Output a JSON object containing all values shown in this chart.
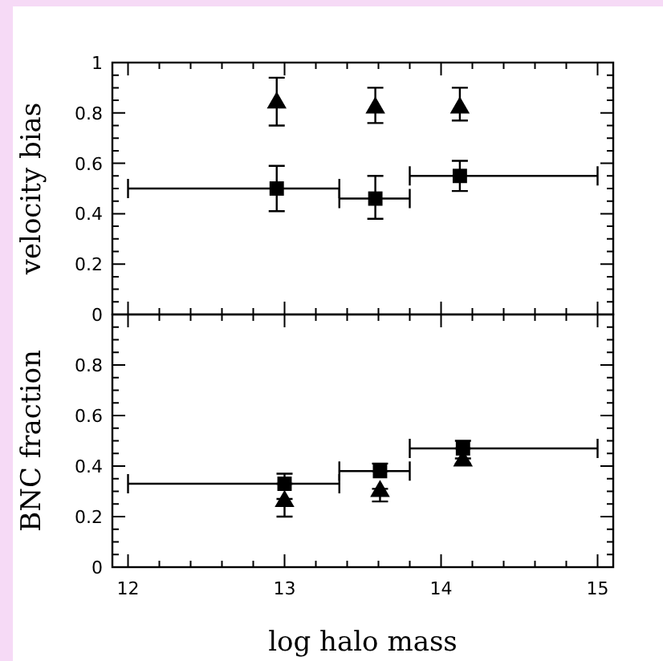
{
  "chart_data": [
    {
      "type": "scatter",
      "ylabel": "velocity bias",
      "xlim": [
        11.9,
        15.1
      ],
      "ylim": [
        0,
        1
      ],
      "tick_labels": "y",
      "xticks": [
        12,
        {
          "value": 12.2,
          "label": null
        },
        {
          "value": 12.4,
          "label": null
        },
        {
          "value": 12.6,
          "label": null
        },
        {
          "value": 12.8,
          "label": null
        },
        13,
        {
          "value": 13.2,
          "label": null
        },
        {
          "value": 13.4,
          "label": null
        },
        {
          "value": 13.6,
          "label": null
        },
        {
          "value": 13.8,
          "label": null
        },
        14,
        {
          "value": 14.2,
          "label": null
        },
        {
          "value": 14.4,
          "label": null
        },
        {
          "value": 14.6,
          "label": null
        },
        {
          "value": 14.8,
          "label": null
        },
        15
      ],
      "yticks": [
        0,
        {
          "value": 0.05,
          "label": null
        },
        {
          "value": 0.1,
          "label": null
        },
        {
          "value": 0.15,
          "label": null
        },
        0.2,
        {
          "value": 0.25,
          "label": null
        },
        {
          "value": 0.3,
          "label": null
        },
        {
          "value": 0.35,
          "label": null
        },
        0.4,
        {
          "value": 0.45,
          "label": null
        },
        {
          "value": 0.5,
          "label": null
        },
        {
          "value": 0.55,
          "label": null
        },
        0.6,
        {
          "value": 0.65,
          "label": null
        },
        {
          "value": 0.7,
          "label": null
        },
        {
          "value": 0.75,
          "label": null
        },
        0.8,
        {
          "value": 0.85,
          "label": null
        },
        {
          "value": 0.9,
          "label": null
        },
        {
          "value": 0.95,
          "label": null
        },
        1
      ],
      "series": [
        {
          "marker": "square",
          "color": "#000000",
          "x": [
            12.95,
            13.58,
            14.12
          ],
          "values": [
            0.5,
            0.46,
            0.55
          ],
          "errors": [
            [
              0.41,
              0.59
            ],
            [
              0.38,
              0.55
            ],
            [
              0.49,
              0.61
            ]
          ],
          "xerrors": [
            [
              12,
              13.35
            ],
            [
              13.35,
              13.8
            ],
            [
              13.8,
              15
            ]
          ]
        },
        {
          "marker": "triangle",
          "color": "#000000",
          "x": [
            12.95,
            13.58,
            14.12
          ],
          "values": [
            0.85,
            0.83,
            0.83
          ],
          "errors": [
            [
              0.75,
              0.94
            ],
            [
              0.76,
              0.9
            ],
            [
              0.77,
              0.9
            ]
          ]
        }
      ]
    },
    {
      "type": "scatter",
      "xlabel": "log halo mass",
      "ylabel": "BNC fraction",
      "xlim": [
        11.9,
        15.1
      ],
      "ylim": [
        0,
        1
      ],
      "xticks": [
        12,
        {
          "value": 12.2,
          "label": null
        },
        {
          "value": 12.4,
          "label": null
        },
        {
          "value": 12.6,
          "label": null
        },
        {
          "value": 12.8,
          "label": null
        },
        13,
        {
          "value": 13.2,
          "label": null
        },
        {
          "value": 13.4,
          "label": null
        },
        {
          "value": 13.6,
          "label": null
        },
        {
          "value": 13.8,
          "label": null
        },
        14,
        {
          "value": 14.2,
          "label": null
        },
        {
          "value": 14.4,
          "label": null
        },
        {
          "value": 14.6,
          "label": null
        },
        {
          "value": 14.8,
          "label": null
        },
        15
      ],
      "yticks": [
        0,
        {
          "value": 0.05,
          "label": null
        },
        {
          "value": 0.1,
          "label": null
        },
        {
          "value": 0.15,
          "label": null
        },
        0.2,
        {
          "value": 0.25,
          "label": null
        },
        {
          "value": 0.3,
          "label": null
        },
        {
          "value": 0.35,
          "label": null
        },
        0.4,
        {
          "value": 0.45,
          "label": null
        },
        {
          "value": 0.5,
          "label": null
        },
        {
          "value": 0.55,
          "label": null
        },
        0.6,
        {
          "value": 0.65,
          "label": null
        },
        {
          "value": 0.7,
          "label": null
        },
        {
          "value": 0.75,
          "label": null
        },
        0.8,
        {
          "value": 0.85,
          "label": null
        },
        {
          "value": 0.9,
          "label": null
        },
        {
          "value": 0.95,
          "label": null
        },
        {
          "value": 1,
          "label": null
        }
      ],
      "series": [
        {
          "marker": "square",
          "color": "#000000",
          "x": [
            13.0,
            13.61,
            14.14
          ],
          "values": [
            0.33,
            0.38,
            0.47
          ],
          "errors": [
            [
              0.33,
              0.37
            ],
            [
              0.38,
              0.41
            ],
            [
              0.47,
              0.5
            ]
          ],
          "xerrors": [
            [
              12,
              13.35
            ],
            [
              13.35,
              13.8
            ],
            [
              13.8,
              15
            ]
          ]
        },
        {
          "marker": "triangle",
          "color": "#000000",
          "x": [
            13.0,
            13.61,
            14.14
          ],
          "values": [
            0.27,
            0.31,
            0.43
          ],
          "errors": [
            [
              0.2,
              0.27
            ],
            [
              0.26,
              0.31
            ],
            [
              0.41,
              0.43
            ]
          ]
        }
      ]
    }
  ]
}
